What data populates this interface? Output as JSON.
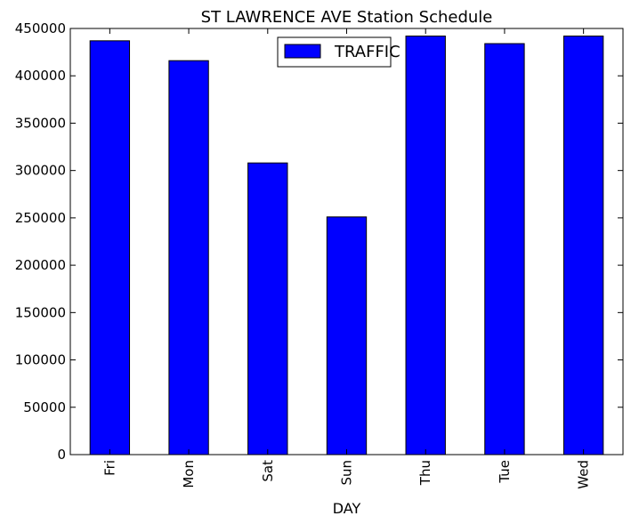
{
  "chart_data": {
    "type": "bar",
    "title": "ST LAWRENCE AVE Station Schedule",
    "xlabel": "DAY",
    "ylabel": "",
    "categories": [
      "Fri",
      "Mon",
      "Sat",
      "Sun",
      "Thu",
      "Tue",
      "Wed"
    ],
    "series": [
      {
        "name": "TRAFFIC",
        "values": [
          437000,
          416000,
          308000,
          251000,
          442000,
          434000,
          442000
        ],
        "color": "#0000ff"
      }
    ],
    "ylim": [
      0,
      450000
    ],
    "yticks": [
      0,
      50000,
      100000,
      150000,
      200000,
      250000,
      300000,
      350000,
      400000,
      450000
    ],
    "legend_position": "top-center",
    "grid": false,
    "edge_color": "#000000"
  }
}
